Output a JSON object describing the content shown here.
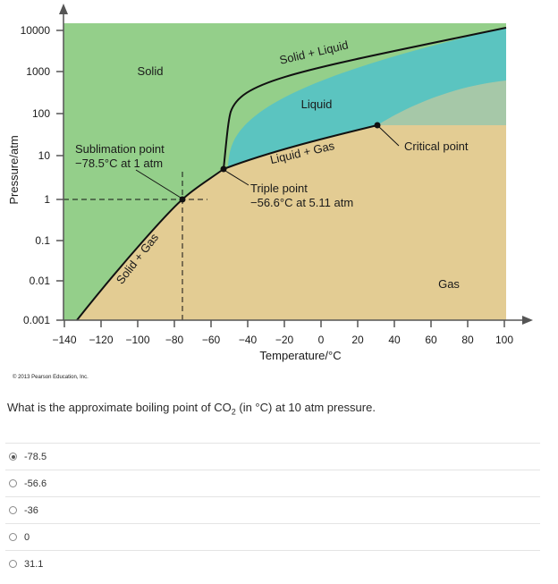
{
  "diagram": {
    "y_axis_label": "Pressure/atm",
    "x_axis_label": "Temperature/°C",
    "y_ticks": [
      "10000",
      "1000",
      "100",
      "10",
      "1",
      "0.1",
      "0.01",
      "0.001"
    ],
    "x_ticks": [
      "−140",
      "−120",
      "−100",
      "−80",
      "−60",
      "−40",
      "−20",
      "0",
      "20",
      "40",
      "60",
      "80",
      "100"
    ],
    "regions": {
      "solid": "Solid",
      "liquid": "Liquid",
      "gas": "Gas",
      "solid_liquid": "Solid + Liquid",
      "liquid_gas": "Liquid + Gas",
      "solid_gas": "Solid + Gas"
    },
    "sublimation": {
      "title": "Sublimation point",
      "detail": "−78.5°C at 1 atm"
    },
    "triple": {
      "title": "Triple point",
      "detail": "−56.6°C at 5.11 atm"
    },
    "critical": {
      "title": "Critical point"
    },
    "copyright": "© 2013 Pearson Education, Inc.",
    "colors": {
      "solid": "#94cf8a",
      "liquid": "#5bc4c0",
      "gas": "#e3cc93"
    }
  },
  "question": {
    "text_before": "What is the approximate boiling point of CO",
    "subscript": "2",
    "text_after": " (in °C) at 10 atm pressure."
  },
  "options": [
    {
      "label": "-78.5",
      "selected": true
    },
    {
      "label": "-56.6",
      "selected": false
    },
    {
      "label": "-36",
      "selected": false
    },
    {
      "label": "0",
      "selected": false
    },
    {
      "label": "31.1",
      "selected": false
    }
  ]
}
